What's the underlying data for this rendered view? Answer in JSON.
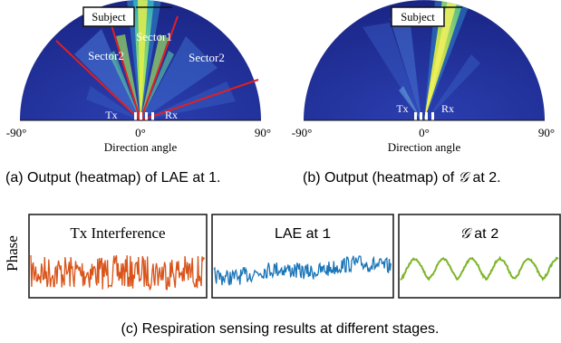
{
  "panel_a": {
    "subject_label": "Subject",
    "sector1_label": "Sector1",
    "sector2_left_label": "Sector2",
    "sector2_right_label": "Sector2",
    "tx_label": "Tx",
    "rx_label": "Rx",
    "tick_left": "-90°",
    "tick_center": "0°",
    "tick_right": "90°",
    "axis_label": "Direction angle",
    "caption": "(a)  Output (heatmap) of LAE at 1."
  },
  "panel_b": {
    "subject_label": "Subject",
    "tx_label": "Tx",
    "rx_label": "Rx",
    "tick_left": "-90°",
    "tick_center": "0°",
    "tick_right": "90°",
    "axis_label": "Direction angle",
    "caption_prefix": "(b)  Output (heatmap) of ",
    "caption_symbol": "𝒢",
    "caption_suffix": " at 2."
  },
  "panel_c": {
    "y_label": "Phase",
    "box1_title": "Tx Interference",
    "box2_title_prefix": "LAE at ",
    "box2_title_num": "1",
    "box3_symbol": "𝒢",
    "box3_title_suffix": " at ",
    "box3_title_num": "2",
    "caption": "(c)  Respiration sensing results at different stages."
  },
  "colors": {
    "heatmap_background": "#1f2a8c",
    "sector_boundary": "#e02020",
    "signal_interference": "#d9541a",
    "signal_lae": "#1a75b8",
    "signal_g": "#7db52a"
  }
}
